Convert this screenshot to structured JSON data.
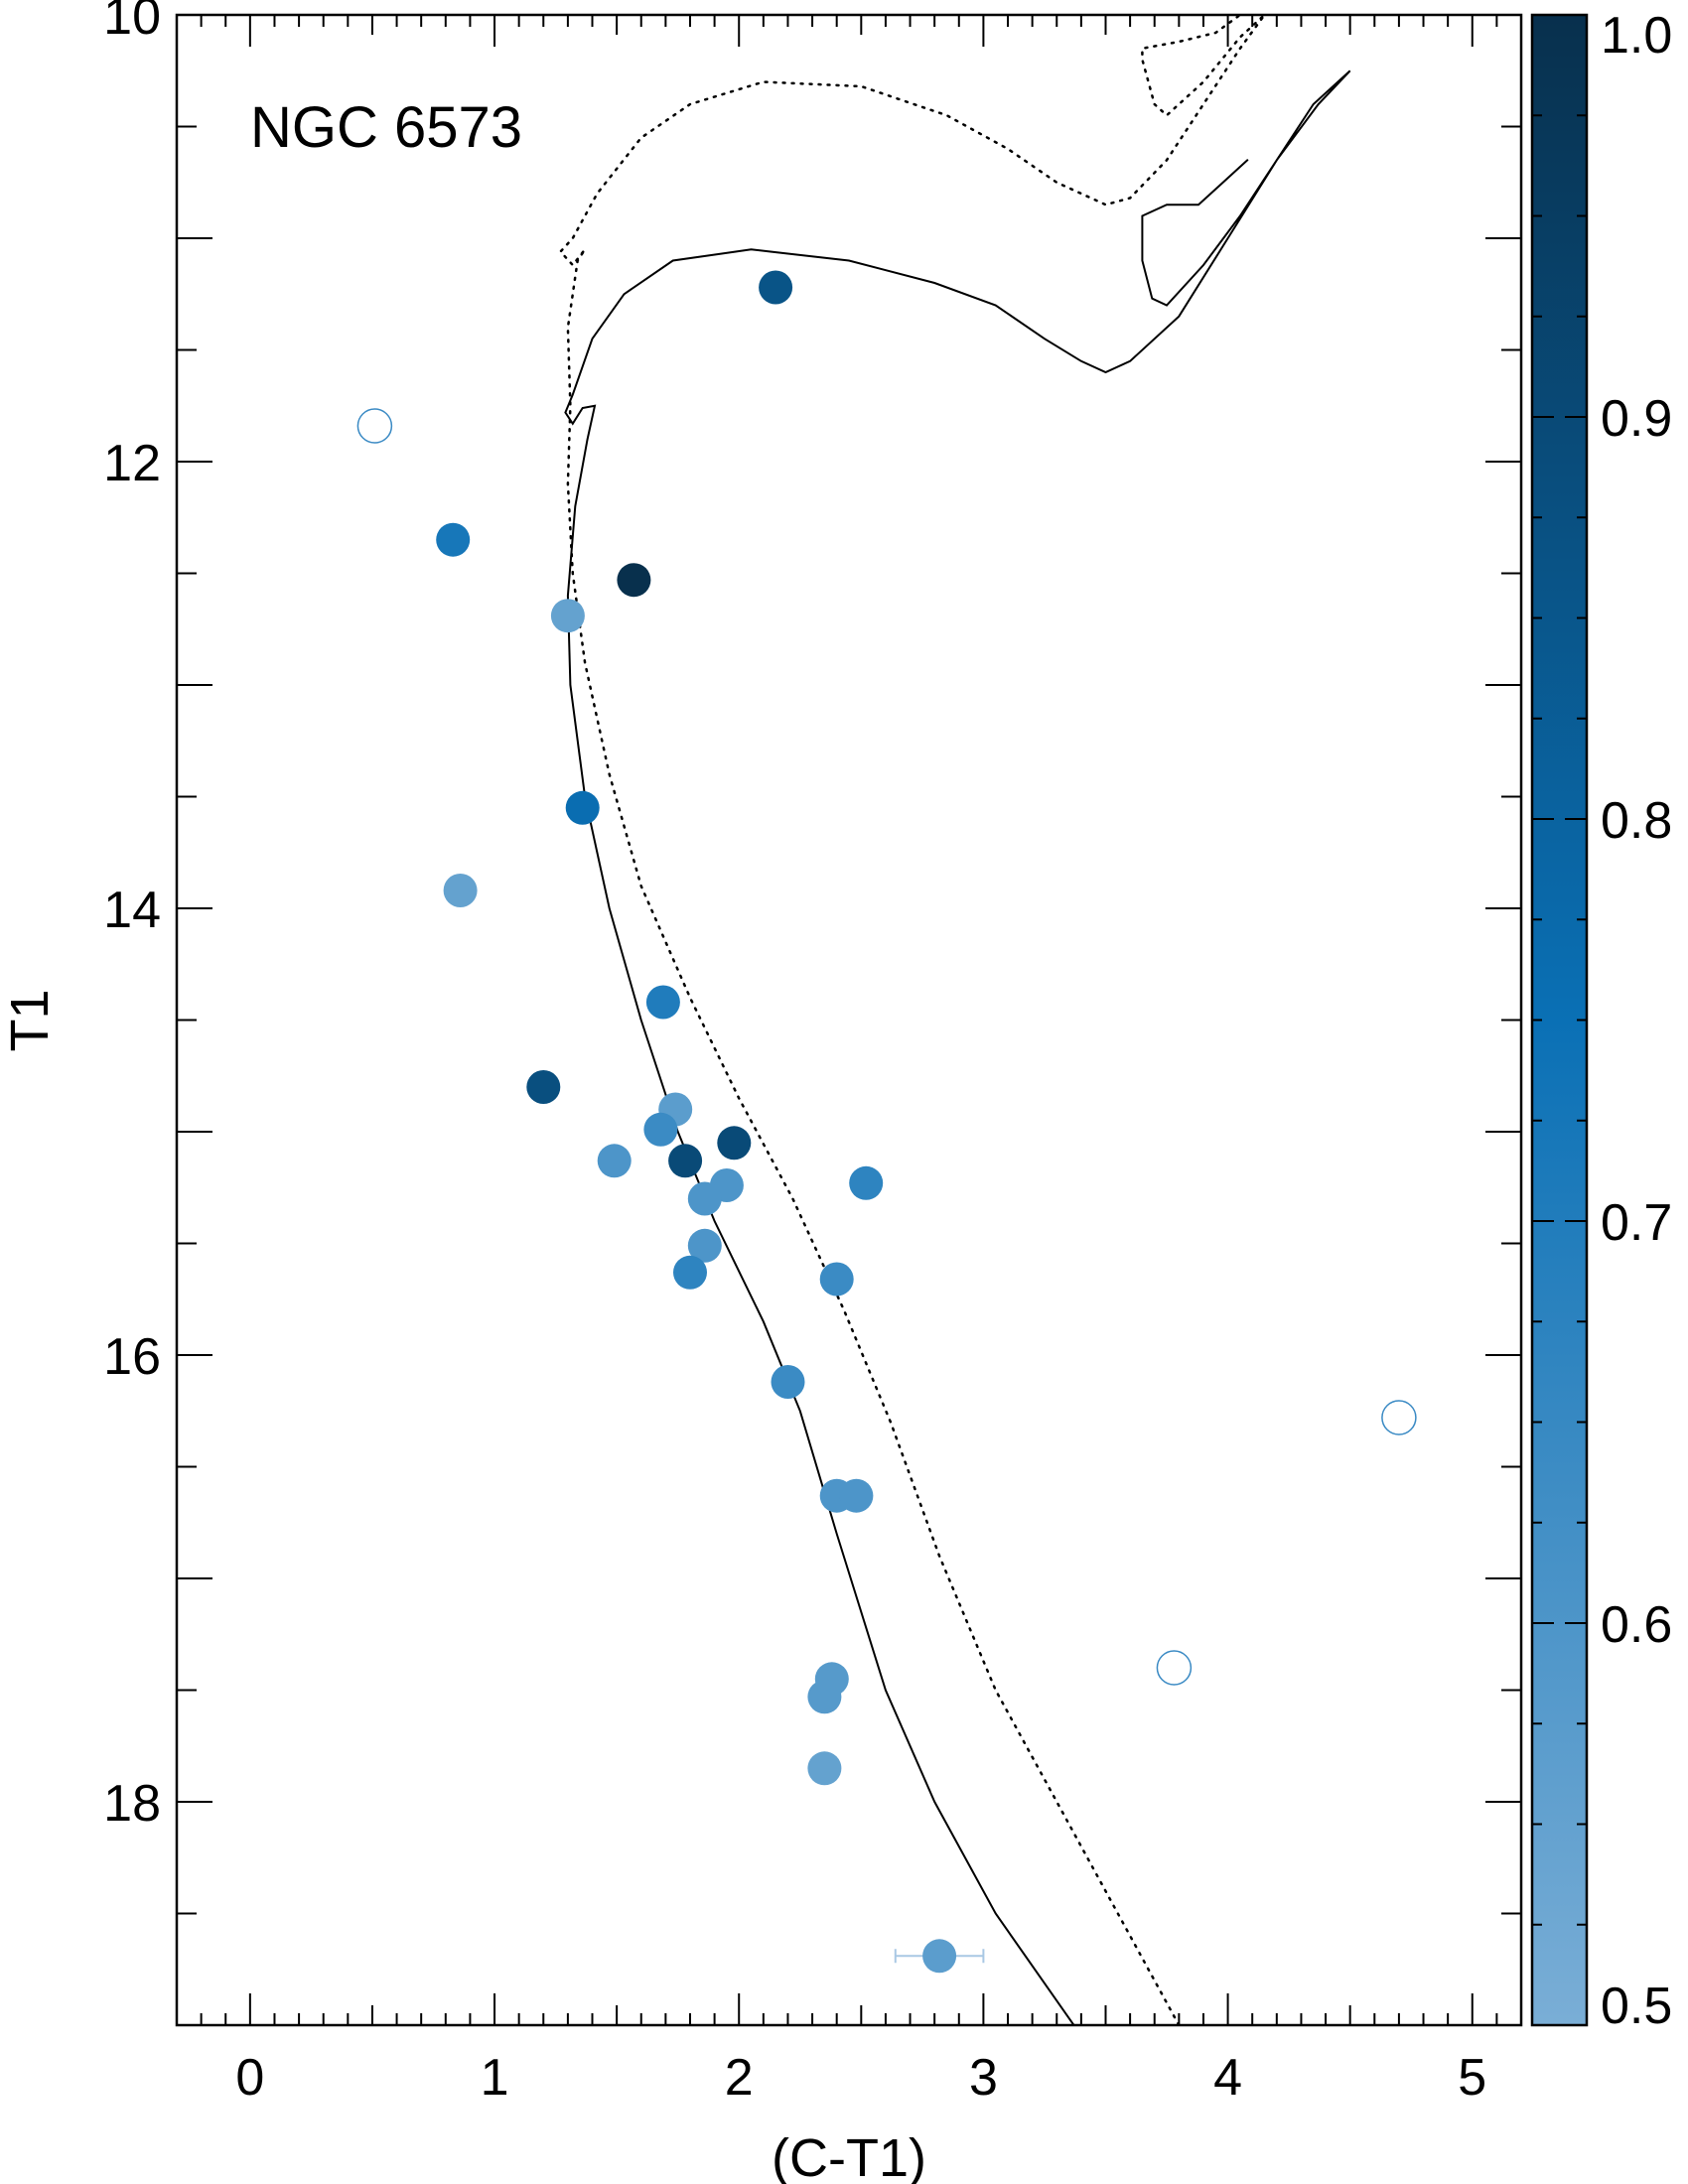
{
  "chart_data": {
    "type": "scatter",
    "title": "NGC 6573",
    "xlabel": "(C-T1)",
    "ylabel": "T1",
    "xlim": [
      -0.3,
      5.2
    ],
    "ylim": [
      19.0,
      10.0
    ],
    "y_inverted": true,
    "grid": false,
    "x_ticks": [
      0,
      1,
      2,
      3,
      4,
      5
    ],
    "x_tick_labels": [
      "0",
      "1",
      "2",
      "3",
      "4",
      "5"
    ],
    "y_ticks": [
      10,
      12,
      14,
      16,
      18
    ],
    "y_tick_labels": [
      "10",
      "12",
      "14",
      "16",
      "18"
    ],
    "colorbar": {
      "min": 0.5,
      "max": 1.0,
      "ticks": [
        0.5,
        0.6,
        0.7,
        0.8,
        0.9,
        1.0
      ],
      "tick_labels": [
        "0.5",
        "0.6",
        "0.7",
        "0.8",
        "0.9",
        "1.0"
      ],
      "color_low": "#7aaed6",
      "color_mid": "#0a70b5",
      "color_high": "#08304d"
    },
    "points": [
      {
        "x": 2.15,
        "y": 11.22,
        "p": 0.86
      },
      {
        "x": 0.83,
        "y": 12.35,
        "p": 0.72
      },
      {
        "x": 1.57,
        "y": 12.53,
        "p": 1.0
      },
      {
        "x": 1.3,
        "y": 12.69,
        "p": 0.55
      },
      {
        "x": 1.36,
        "y": 13.55,
        "p": 0.76
      },
      {
        "x": 0.86,
        "y": 13.92,
        "p": 0.55
      },
      {
        "x": 1.69,
        "y": 14.42,
        "p": 0.7
      },
      {
        "x": 1.2,
        "y": 14.8,
        "p": 0.88
      },
      {
        "x": 1.74,
        "y": 14.9,
        "p": 0.57
      },
      {
        "x": 1.68,
        "y": 14.99,
        "p": 0.64
      },
      {
        "x": 1.98,
        "y": 15.05,
        "p": 0.9
      },
      {
        "x": 1.49,
        "y": 15.13,
        "p": 0.6
      },
      {
        "x": 1.78,
        "y": 15.13,
        "p": 0.9
      },
      {
        "x": 2.52,
        "y": 15.23,
        "p": 0.67
      },
      {
        "x": 1.95,
        "y": 15.24,
        "p": 0.6
      },
      {
        "x": 1.86,
        "y": 15.3,
        "p": 0.6
      },
      {
        "x": 1.86,
        "y": 15.51,
        "p": 0.6
      },
      {
        "x": 1.8,
        "y": 15.63,
        "p": 0.67
      },
      {
        "x": 2.4,
        "y": 15.66,
        "p": 0.64
      },
      {
        "x": 2.2,
        "y": 16.12,
        "p": 0.64
      },
      {
        "x": 2.4,
        "y": 16.63,
        "p": 0.6
      },
      {
        "x": 2.48,
        "y": 16.63,
        "p": 0.6
      },
      {
        "x": 2.38,
        "y": 17.45,
        "p": 0.58
      },
      {
        "x": 2.35,
        "y": 17.53,
        "p": 0.58
      },
      {
        "x": 2.35,
        "y": 17.85,
        "p": 0.55
      },
      {
        "x": 2.82,
        "y": 18.69,
        "p": 0.57,
        "xerr": 0.18
      }
    ],
    "open_points": [
      {
        "x": 0.51,
        "y": 11.84
      },
      {
        "x": 4.7,
        "y": 16.28
      },
      {
        "x": 3.78,
        "y": 17.4
      }
    ],
    "isochrones": [
      {
        "style": "solid",
        "points": [
          [
            3.37,
            19.0
          ],
          [
            3.05,
            18.5
          ],
          [
            2.8,
            18.0
          ],
          [
            2.6,
            17.5
          ],
          [
            2.4,
            16.8
          ],
          [
            2.25,
            16.25
          ],
          [
            2.1,
            15.85
          ],
          [
            1.9,
            15.4
          ],
          [
            1.75,
            15.0
          ],
          [
            1.6,
            14.5
          ],
          [
            1.47,
            14.0
          ],
          [
            1.37,
            13.5
          ],
          [
            1.31,
            13.0
          ],
          [
            1.3,
            12.6
          ],
          [
            1.33,
            12.2
          ],
          [
            1.38,
            11.9
          ],
          [
            1.41,
            11.75
          ],
          [
            1.36,
            11.76
          ],
          [
            1.32,
            11.83
          ],
          [
            1.29,
            11.78
          ],
          [
            1.32,
            11.7
          ],
          [
            1.4,
            11.45
          ],
          [
            1.53,
            11.25
          ],
          [
            1.73,
            11.1
          ],
          [
            2.05,
            11.05
          ],
          [
            2.45,
            11.1
          ],
          [
            2.8,
            11.2
          ],
          [
            3.05,
            11.3
          ],
          [
            3.25,
            11.45
          ],
          [
            3.4,
            11.55
          ],
          [
            3.5,
            11.6
          ],
          [
            3.6,
            11.55
          ],
          [
            3.8,
            11.35
          ],
          [
            4.0,
            11.0
          ],
          [
            4.2,
            10.65
          ],
          [
            4.35,
            10.4
          ],
          [
            4.5,
            10.25
          ],
          [
            4.37,
            10.4
          ],
          [
            4.2,
            10.65
          ],
          [
            4.05,
            10.9
          ],
          [
            3.9,
            11.12
          ],
          [
            3.75,
            11.3
          ],
          [
            3.69,
            11.27
          ],
          [
            3.65,
            11.1
          ],
          [
            3.65,
            10.9
          ],
          [
            3.75,
            10.85
          ],
          [
            3.88,
            10.85
          ],
          [
            3.98,
            10.75
          ],
          [
            4.08,
            10.65
          ]
        ]
      },
      {
        "style": "dotted",
        "points": [
          [
            3.8,
            19.0
          ],
          [
            3.55,
            18.5
          ],
          [
            3.3,
            18.0
          ],
          [
            3.05,
            17.5
          ],
          [
            2.82,
            16.9
          ],
          [
            2.62,
            16.3
          ],
          [
            2.43,
            15.8
          ],
          [
            2.22,
            15.3
          ],
          [
            2.0,
            14.85
          ],
          [
            1.8,
            14.4
          ],
          [
            1.6,
            13.9
          ],
          [
            1.47,
            13.4
          ],
          [
            1.37,
            12.9
          ],
          [
            1.32,
            12.5
          ],
          [
            1.3,
            12.1
          ],
          [
            1.31,
            11.75
          ],
          [
            1.3,
            11.4
          ],
          [
            1.34,
            11.1
          ],
          [
            1.37,
            11.05
          ],
          [
            1.32,
            11.12
          ],
          [
            1.27,
            11.06
          ],
          [
            1.32,
            11.0
          ],
          [
            1.42,
            10.8
          ],
          [
            1.6,
            10.55
          ],
          [
            1.8,
            10.4
          ],
          [
            2.1,
            10.3
          ],
          [
            2.5,
            10.32
          ],
          [
            2.85,
            10.45
          ],
          [
            3.1,
            10.6
          ],
          [
            3.3,
            10.75
          ],
          [
            3.5,
            10.85
          ],
          [
            3.6,
            10.82
          ],
          [
            3.75,
            10.65
          ],
          [
            3.9,
            10.4
          ],
          [
            4.05,
            10.15
          ],
          [
            4.15,
            10.0
          ],
          [
            4.05,
            10.1
          ],
          [
            3.9,
            10.3
          ],
          [
            3.75,
            10.45
          ],
          [
            3.7,
            10.4
          ],
          [
            3.65,
            10.2
          ],
          [
            3.65,
            10.15
          ],
          [
            3.8,
            10.12
          ],
          [
            3.95,
            10.08
          ],
          [
            4.05,
            10.0
          ]
        ]
      }
    ]
  }
}
